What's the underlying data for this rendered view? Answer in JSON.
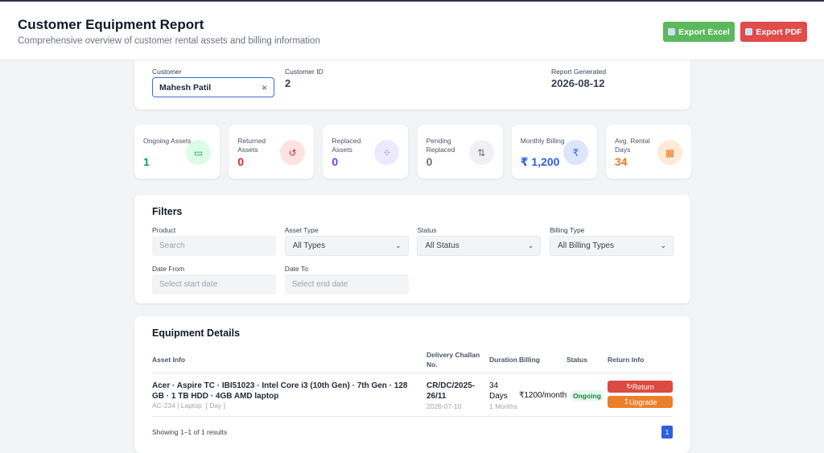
{
  "header": {
    "title": "Customer Equipment Report",
    "subtitle": "Comprehensive overview of customer rental assets and billing information",
    "export_excel": "Export Excel",
    "export_pdf": "Export PDF"
  },
  "customer": {
    "label": "Customer",
    "value": "Mahesh Patil",
    "id_label": "Customer ID",
    "id_value": "2",
    "generated_label": "Report Generated",
    "generated_value": "2026-08-12"
  },
  "stats": [
    {
      "label": "Ongoing Assets",
      "value": "1"
    },
    {
      "label": "Returned Assets",
      "value": "0"
    },
    {
      "label": "Replaced Assets",
      "value": "0"
    },
    {
      "label": "Pending Replaced",
      "value": "0"
    },
    {
      "label": "Monthly Billing",
      "value": "₹ 1,200"
    },
    {
      "label": "Avg. Rental Days",
      "value": "34"
    }
  ],
  "filters": {
    "title": "Filters",
    "fields": [
      {
        "label": "Product",
        "value": "Search"
      },
      {
        "label": "Asset Type",
        "value": "All Types"
      },
      {
        "label": "Status",
        "value": "All Status"
      },
      {
        "label": "Billing Type",
        "value": "All Billing Types"
      },
      {
        "label": "Date From",
        "value": "Select start date"
      },
      {
        "label": "Date To",
        "value": "Select end date"
      }
    ]
  },
  "equipment": {
    "title": "Equipment Details",
    "columns": [
      "Asset Info",
      "Delivery Challan No.",
      "Duration",
      "Billing",
      "Status",
      "Return Info"
    ],
    "rows": [
      {
        "asset": "Acer · Aspire TC · IBI51023 · Intel Core i3 (10th Gen) · 7th Gen · 128 GB · 1 TB HDD · 4GB AMD laptop",
        "asset_sub": "AC-234 | Laptop  [ Day ]",
        "challan": "CR/DC/2025-26/11",
        "challan_date": "2026-07-10",
        "duration": "34 Days",
        "duration_sub": "1 Months",
        "billing": "₹1200/month",
        "status": "Ongoing",
        "actions": [
          "Return",
          "Upgrade"
        ]
      }
    ],
    "footer": "Showing 1–1 of 1 results",
    "page": "1"
  }
}
